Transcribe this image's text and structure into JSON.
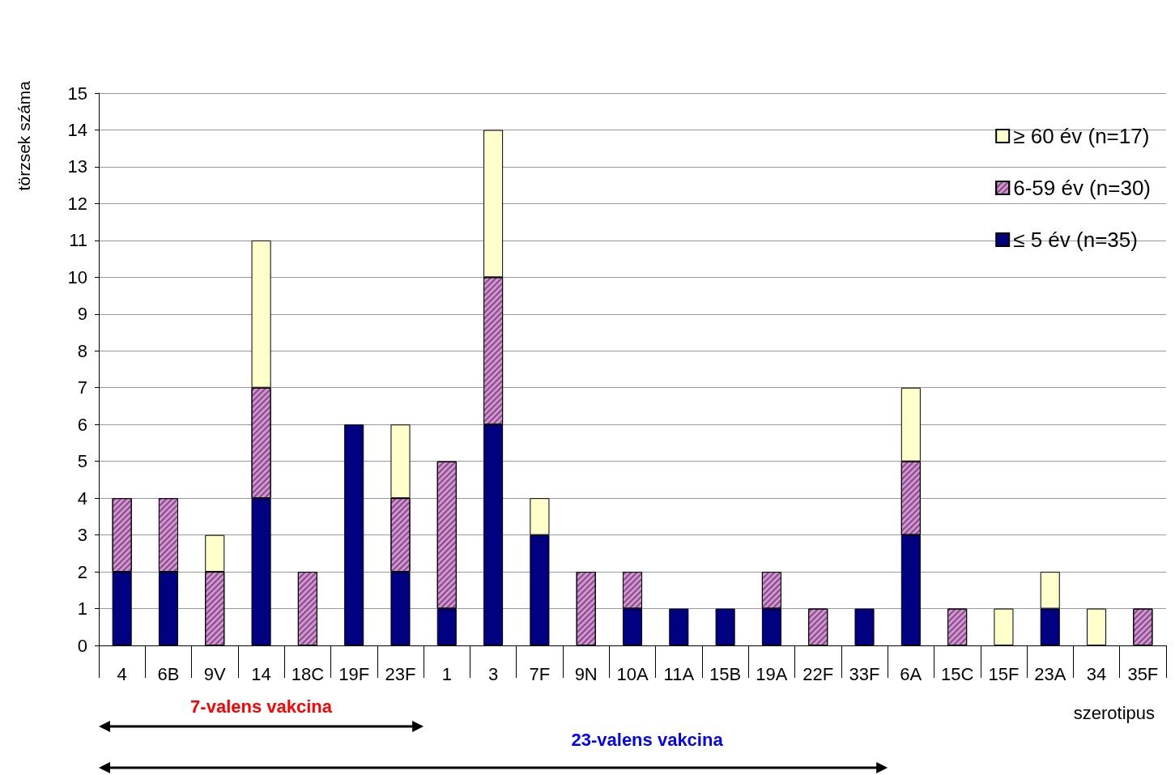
{
  "chart_data": {
    "type": "bar",
    "stacked": true,
    "xlabel": "szerotipus",
    "ylabel": "törzsek száma",
    "categories": [
      "4",
      "6B",
      "9V",
      "14",
      "18C",
      "19F",
      "23F",
      "1",
      "3",
      "7F",
      "9N",
      "10A",
      "11A",
      "15B",
      "19A",
      "22F",
      "33F",
      "6A",
      "15C",
      "15F",
      "23A",
      "34",
      "35F"
    ],
    "series": [
      {
        "name": "≤ 5 év (n=35)",
        "color": "#000080",
        "values": [
          2,
          2,
          0,
          4,
          0,
          6,
          2,
          1,
          6,
          3,
          0,
          1,
          1,
          1,
          1,
          0,
          1,
          3,
          0,
          0,
          1,
          0,
          0
        ]
      },
      {
        "name": "6-59 év (n=30)",
        "color": "#cc99cc",
        "values": [
          2,
          2,
          2,
          3,
          2,
          0,
          2,
          4,
          4,
          0,
          2,
          1,
          0,
          0,
          1,
          1,
          0,
          2,
          1,
          0,
          0,
          0,
          1
        ]
      },
      {
        "name": "≥ 60 év (n=17)",
        "color": "#ffffcc",
        "values": [
          0,
          0,
          1,
          4,
          0,
          0,
          2,
          0,
          4,
          1,
          0,
          0,
          0,
          0,
          0,
          0,
          0,
          2,
          0,
          1,
          1,
          1,
          0
        ]
      }
    ],
    "ylim": [
      0,
      15
    ],
    "yticks": [
      0,
      1,
      2,
      3,
      4,
      5,
      6,
      7,
      8,
      9,
      10,
      11,
      12,
      13,
      14,
      15
    ],
    "grid": "y",
    "legend": "top right",
    "annotations": [
      "7-valens vakcina",
      "23-valens vakcina"
    ]
  }
}
